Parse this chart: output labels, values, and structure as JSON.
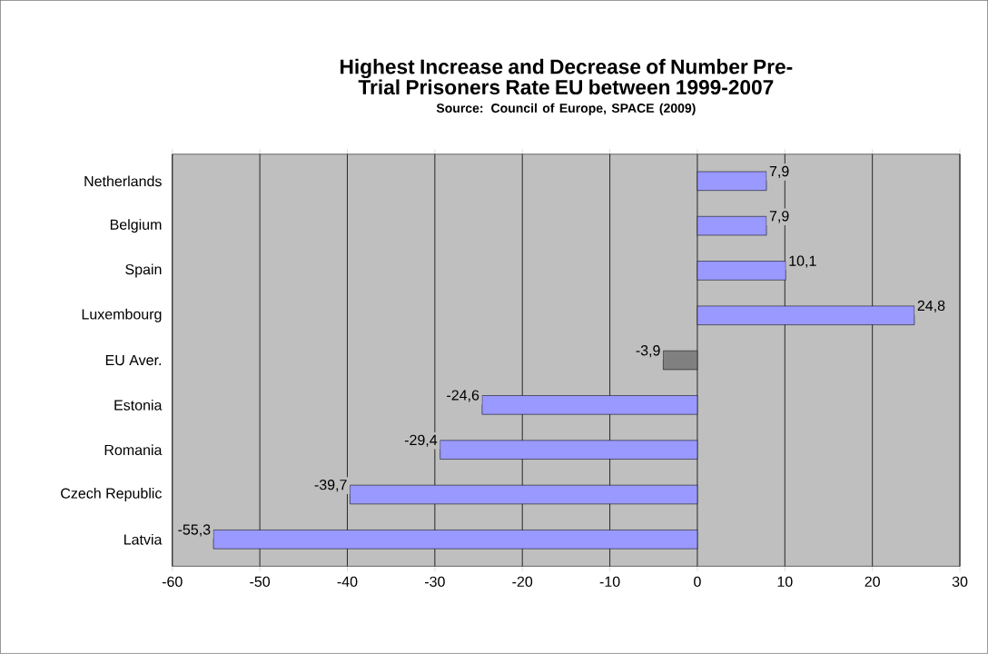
{
  "chart_data": {
    "type": "bar",
    "orientation": "horizontal",
    "title": "Highest Increase and Decrease of Number Pre-Trial Prisoners Rate EU between 1999-2007",
    "subtitle": "Source: Council of Europe, SPACE (2009)",
    "categories": [
      "Netherlands",
      "Belgium",
      "Spain",
      "Luxembourg",
      "EU Aver.",
      "Estonia",
      "Romania",
      "Czech Republic",
      "Latvia"
    ],
    "values": [
      7.9,
      7.9,
      10.1,
      24.8,
      -3.9,
      -24.6,
      -29.4,
      -39.7,
      -55.3
    ],
    "colors": [
      "#9999ff",
      "#9999ff",
      "#9999ff",
      "#9999ff",
      "#808080",
      "#9999ff",
      "#9999ff",
      "#9999ff",
      "#9999ff"
    ],
    "value_labels": [
      "7,9",
      "7,9",
      "10,1",
      "24,8",
      "-3,9",
      "-24,6",
      "-29,4",
      "-39,7",
      "-55,3"
    ],
    "xlim": [
      -60,
      30
    ],
    "xticks": [
      -60,
      -50,
      -40,
      -30,
      -20,
      -10,
      0,
      10,
      20,
      30
    ],
    "grid": "x"
  }
}
